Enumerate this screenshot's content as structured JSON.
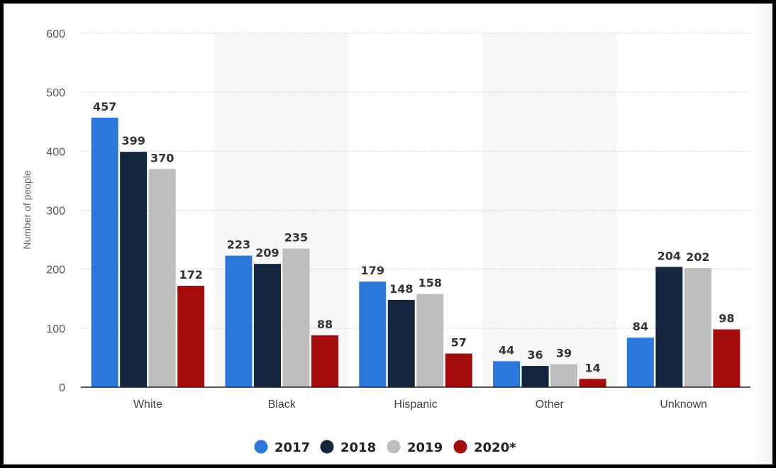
{
  "chart_data": {
    "type": "bar",
    "title": "",
    "xlabel": "",
    "ylabel": "Number of people",
    "ylim": [
      0,
      600
    ],
    "yticks": [
      0,
      100,
      200,
      300,
      400,
      500,
      600
    ],
    "grid": true,
    "legend_position": "bottom",
    "categories": [
      "White",
      "Black",
      "Hispanic",
      "Other",
      "Unknown"
    ],
    "series": [
      {
        "name": "2017",
        "color": "#2a78dc",
        "values": [
          457,
          223,
          179,
          44,
          84
        ]
      },
      {
        "name": "2018",
        "color": "#13263e",
        "values": [
          399,
          209,
          148,
          36,
          204
        ]
      },
      {
        "name": "2019",
        "color": "#bdbdbd",
        "values": [
          370,
          235,
          158,
          39,
          202
        ]
      },
      {
        "name": "2020*",
        "color": "#a50c0c",
        "values": [
          172,
          88,
          57,
          14,
          98
        ]
      }
    ]
  }
}
